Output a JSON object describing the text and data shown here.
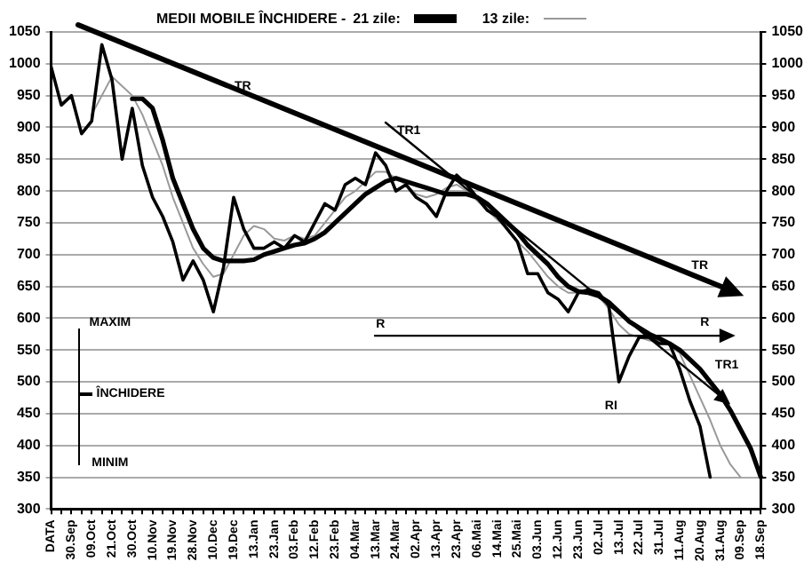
{
  "chart_data": {
    "type": "line",
    "legend_title": "MEDII MOBILE ÎNCHIDERE -",
    "categories": [
      "DATA",
      null,
      "30.Sep",
      null,
      "09.Oct",
      null,
      "21.Oct",
      null,
      "30.Oct",
      null,
      "10.Nov",
      null,
      "19.Nov",
      null,
      "28.Nov",
      null,
      "10.Dec",
      null,
      "19.Dec",
      null,
      "13.Jan",
      null,
      "23.Jan",
      null,
      "03.Feb",
      null,
      "12.Feb",
      null,
      "23.Feb",
      null,
      "04.Mar",
      null,
      "13.Mar",
      null,
      "24.Mar",
      null,
      "02.Apr",
      null,
      "13.Apr",
      null,
      "23.Apr",
      null,
      "06.Mai",
      null,
      "14.Mai",
      null,
      "25.Mai",
      null,
      "03.Jun",
      null,
      "12.Jun",
      null,
      "23.Jun",
      null,
      "02.Jul",
      null,
      "13.Jul",
      null,
      "22.Jul",
      null,
      "31.Jul",
      null,
      "11.Aug",
      null,
      "20.Aug",
      null,
      "31.Aug",
      null,
      "09.Sep",
      null,
      "18.Sep"
    ],
    "series": [
      {
        "color": "#000000",
        "values": [
          995,
          935,
          950,
          890,
          910,
          1030,
          975,
          850,
          930,
          840,
          790,
          760,
          720,
          660,
          690,
          660,
          610,
          680,
          790,
          740,
          710,
          710,
          720,
          710,
          730,
          720,
          750,
          780,
          770,
          810,
          820,
          810,
          860,
          840,
          800,
          810,
          790,
          780,
          760,
          800,
          825,
          810,
          790,
          770,
          760,
          740,
          720,
          670,
          670,
          640,
          630,
          610,
          640,
          645,
          640,
          620,
          500,
          540,
          570,
          570,
          560,
          560,
          520,
          470,
          430,
          350,
          null,
          null,
          null,
          null,
          null
        ]
      },
      {
        "name": "21 zile:",
        "color": "#000000",
        "values": [
          null,
          null,
          null,
          null,
          null,
          null,
          null,
          null,
          945,
          945,
          930,
          880,
          820,
          780,
          740,
          710,
          695,
          690,
          690,
          690,
          692,
          700,
          705,
          710,
          715,
          718,
          725,
          735,
          750,
          765,
          780,
          795,
          805,
          815,
          820,
          815,
          810,
          805,
          800,
          795,
          795,
          795,
          790,
          780,
          765,
          750,
          735,
          715,
          700,
          685,
          665,
          650,
          642,
          640,
          635,
          625,
          610,
          595,
          585,
          575,
          568,
          560,
          550,
          535,
          520,
          500,
          480,
          455,
          425,
          395,
          350
        ]
      },
      {
        "name": "13 zile:",
        "color": "#999999",
        "values": [
          null,
          null,
          null,
          null,
          920,
          950,
          980,
          965,
          950,
          920,
          880,
          840,
          790,
          750,
          710,
          685,
          665,
          670,
          700,
          730,
          745,
          740,
          725,
          722,
          730,
          725,
          730,
          750,
          770,
          790,
          800,
          815,
          830,
          830,
          820,
          810,
          795,
          790,
          795,
          805,
          810,
          800,
          785,
          770,
          755,
          740,
          720,
          705,
          685,
          665,
          650,
          640,
          640,
          640,
          635,
          615,
          590,
          575,
          570,
          565,
          562,
          558,
          545,
          510,
          475,
          440,
          400,
          370,
          350,
          null,
          null
        ]
      }
    ],
    "ylim": [
      300,
      1050
    ],
    "yticks": [
      300,
      350,
      400,
      450,
      500,
      550,
      600,
      650,
      700,
      750,
      800,
      850,
      900,
      950,
      1000,
      1050
    ],
    "y2lim": [
      300,
      1050
    ],
    "y2ticks": [
      300,
      350,
      400,
      450,
      500,
      550,
      600,
      650,
      700,
      750,
      800,
      850,
      900,
      950,
      1000,
      1050
    ],
    "grid": "y",
    "legend": "top",
    "marker": "none",
    "annotations": [
      "TR",
      "TR1",
      "TR",
      "R",
      "R",
      "TR1",
      "RI",
      "MAXIM",
      "ÎNCHIDERE",
      "MINIM"
    ]
  }
}
